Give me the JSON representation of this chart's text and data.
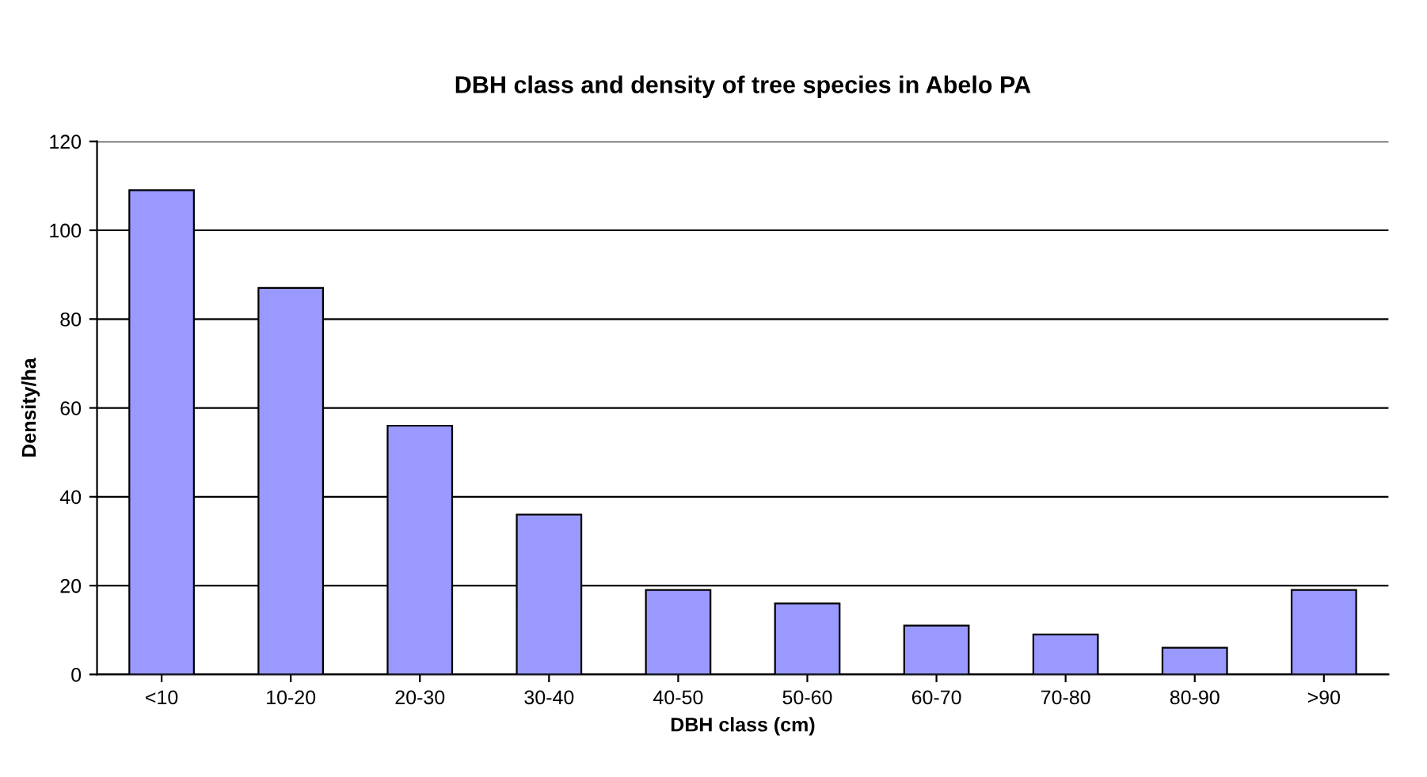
{
  "chart_data": {
    "type": "bar",
    "title": "DBH class and density of tree species in Abelo PA",
    "xlabel": "DBH class (cm)",
    "ylabel": "Density/ha",
    "categories": [
      "<10",
      "10-20",
      "20-30",
      "30-40",
      "40-50",
      "50-60",
      "60-70",
      "70-80",
      "80-90",
      ">90"
    ],
    "values": [
      109,
      87,
      56,
      36,
      19,
      16,
      11,
      9,
      6,
      19
    ],
    "color": "#9999ff",
    "ylim": [
      0,
      120
    ],
    "yticks": [
      0,
      20,
      40,
      60,
      80,
      100,
      120
    ],
    "grid": "y"
  }
}
